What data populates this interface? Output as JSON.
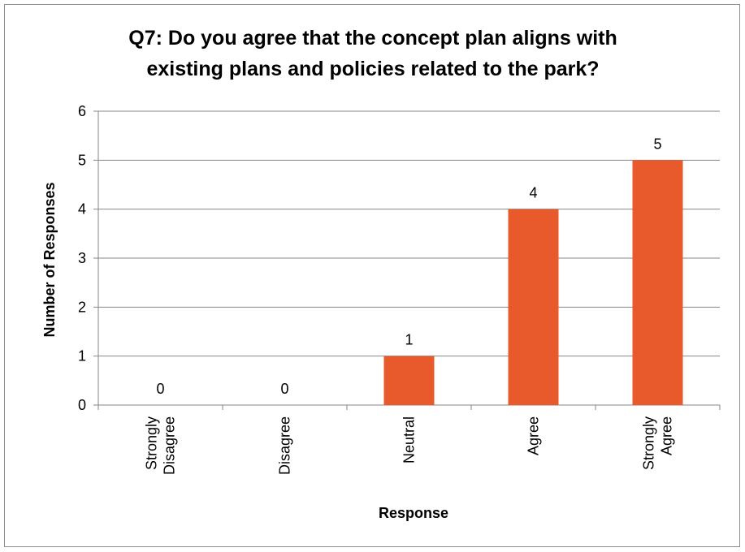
{
  "chart_data": {
    "type": "bar",
    "title": "Q7: Do you agree that the concept plan aligns with existing plans and policies related to the park?",
    "title_lines": [
      "Q7: Do you agree that the concept plan aligns with",
      "existing plans and policies related to the park?"
    ],
    "xlabel": "Response",
    "ylabel": "Number of Responses",
    "categories": [
      "Strongly Disagree",
      "Disagree",
      "Neutral",
      "Agree",
      "Strongly Agree"
    ],
    "category_lines": [
      [
        "Strongly",
        "Disagree"
      ],
      [
        "Disagree"
      ],
      [
        "Neutral"
      ],
      [
        "Agree"
      ],
      [
        "Strongly",
        "Agree"
      ]
    ],
    "values": [
      0,
      0,
      1,
      4,
      5
    ],
    "ylim": [
      0,
      6
    ],
    "yticks": [
      0,
      1,
      2,
      3,
      4,
      5,
      6
    ],
    "grid": true,
    "legend": "none",
    "bar_color": "#e85a2b"
  }
}
